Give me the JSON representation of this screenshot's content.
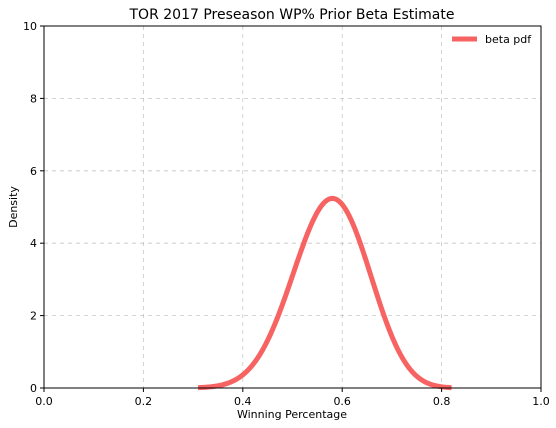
{
  "chart_data": {
    "type": "line",
    "title": "TOR 2017 Preseason WP% Prior Beta Estimate",
    "xlabel": "Winning Percentage",
    "ylabel": "Density",
    "xlim": [
      0,
      1
    ],
    "ylim": [
      0,
      10
    ],
    "xticks": [
      "0.0",
      "0.2",
      "0.4",
      "0.6",
      "0.8",
      "1.0"
    ],
    "yticks": [
      "0",
      "2",
      "4",
      "6",
      "8",
      "10"
    ],
    "grid": true,
    "legend_position": "top-right",
    "series": [
      {
        "name": "beta pdf",
        "color": "#f76363",
        "distribution": {
          "family": "beta",
          "alpha": 24.5,
          "beta": 18.0
        },
        "x_range": [
          0.31,
          0.82
        ]
      }
    ]
  }
}
